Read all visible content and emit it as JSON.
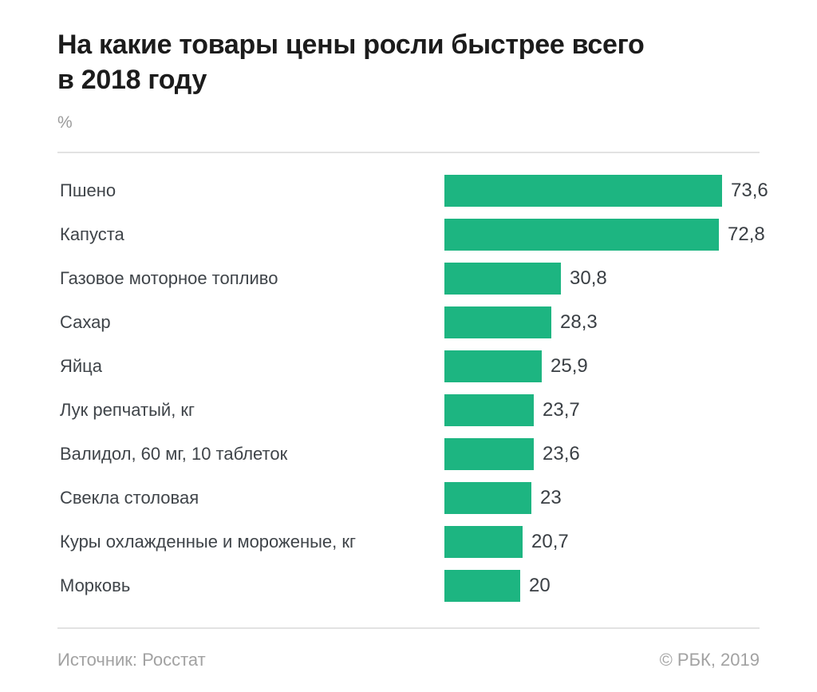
{
  "title_lines": [
    "На какие товары цены росли быстрее всего",
    "в 2018 году"
  ],
  "footer": {
    "source": "Источник: Росстат",
    "credit": "© РБК, 2019"
  },
  "colors": {
    "bar": "#1db581",
    "title": "#1c1c1c",
    "label": "#3f4449",
    "muted": "#9b9b9b",
    "divider": "#e2e2e2"
  },
  "chart_data": {
    "type": "bar",
    "orientation": "horizontal",
    "title": "На какие товары цены росли быстрее всего в 2018 году",
    "unit": "%",
    "categories": [
      "Пшено",
      "Капуста",
      "Газовое моторное топливо",
      "Сахар",
      "Яйца",
      "Лук репчатый, кг",
      "Валидол, 60 мг, 10 таблеток",
      "Свекла столовая",
      "Куры охлажденные и мороженые, кг",
      "Морковь"
    ],
    "values": [
      73.6,
      72.8,
      30.8,
      28.3,
      25.9,
      23.7,
      23.6,
      23,
      20.7,
      20
    ],
    "value_labels": [
      "73,6",
      "72,8",
      "30,8",
      "28,3",
      "25,9",
      "23,7",
      "23,6",
      "23",
      "20,7",
      "20"
    ],
    "xlim": [
      0,
      78
    ],
    "grid": false,
    "legend": false,
    "value_labels_position": "end-of-bar"
  }
}
